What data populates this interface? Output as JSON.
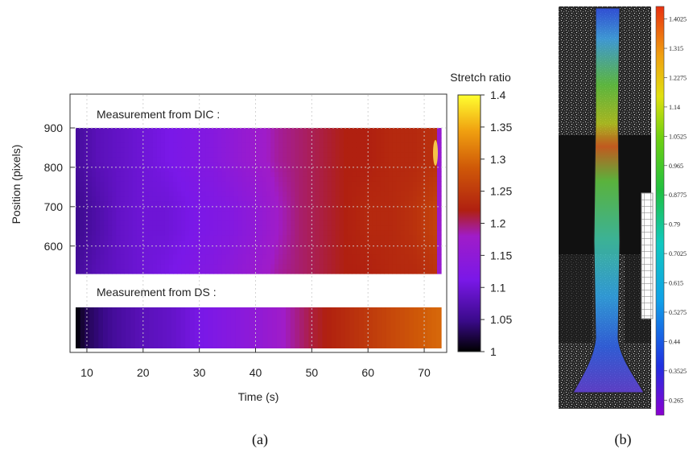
{
  "panel_a": {
    "caption": "(a)",
    "colorbar_title": "Stretch ratio",
    "colorbar_ticks": [
      "1",
      "1.05",
      "1.1",
      "1.15",
      "1.2",
      "1.25",
      "1.3",
      "1.35",
      "1.4"
    ],
    "colors": {
      "low": "#000000",
      "mid_low": "#7a18e8",
      "mid": "#b02010",
      "high": "#e88a08",
      "top": "#ffff30"
    }
  },
  "panel_b": {
    "caption": "(b)",
    "colorbar_ticks": [
      "1.4025",
      "1.315",
      "1.2275",
      "1.14",
      "1.0525",
      "0.965",
      "0.8775",
      "0.79",
      "0.7025",
      "0.615",
      "0.5275",
      "0.44",
      "0.3525",
      "0.265"
    ]
  },
  "chart_data": [
    {
      "type": "heatmap",
      "title": "Measurement from DIC :",
      "xlabel": "Time (s)",
      "ylabel": "Position (pixels)",
      "xlim": [
        7,
        74
      ],
      "ylim": [
        530,
        900
      ],
      "x_ticks": [
        10,
        20,
        30,
        40,
        50,
        60,
        70
      ],
      "y_ticks": [
        600,
        700,
        800,
        900
      ],
      "colorbar_label": "Stretch ratio",
      "colorbar_range": [
        1,
        1.4
      ],
      "time_s": [
        8,
        12,
        16,
        20,
        24,
        28,
        32,
        36,
        40,
        44,
        48,
        52,
        56,
        60,
        64,
        68,
        72,
        73
      ],
      "stretch_ratio_band": [
        1.05,
        1.07,
        1.09,
        1.1,
        1.1,
        1.11,
        1.12,
        1.13,
        1.15,
        1.18,
        1.2,
        1.21,
        1.22,
        1.23,
        1.23,
        1.24,
        1.26,
        1.12
      ],
      "stretch_ratio_rest": [
        1.06,
        1.08,
        1.09,
        1.1,
        1.11,
        1.12,
        1.13,
        1.15,
        1.17,
        1.19,
        1.2,
        1.21,
        1.22,
        1.22,
        1.23,
        1.23,
        1.24,
        1.12
      ],
      "band_position_range": [
        640,
        700
      ]
    },
    {
      "type": "heatmap",
      "title": "Measurement from DS :",
      "xlabel": "Time (s)",
      "xlim": [
        7,
        74
      ],
      "colorbar_range": [
        1,
        1.4
      ],
      "time_s": [
        8,
        10,
        15,
        20,
        25,
        30,
        35,
        40,
        45,
        50,
        55,
        60,
        65,
        70,
        73
      ],
      "stretch_ratio": [
        1.0,
        1.03,
        1.06,
        1.08,
        1.09,
        1.11,
        1.13,
        1.15,
        1.18,
        1.21,
        1.23,
        1.25,
        1.27,
        1.29,
        1.3
      ]
    },
    {
      "type": "heatmap",
      "colorbar_ticks": [
        1.4025,
        1.315,
        1.2275,
        1.14,
        1.0525,
        0.965,
        0.8775,
        0.79,
        0.7025,
        0.615,
        0.5275,
        0.44,
        0.3525,
        0.265
      ],
      "colorbar_range": [
        0.22,
        1.44
      ]
    }
  ]
}
